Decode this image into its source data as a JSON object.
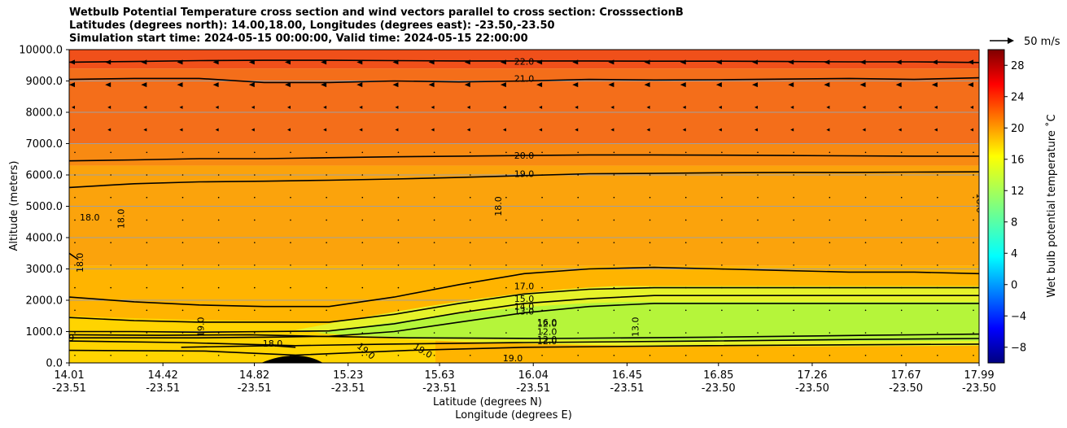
{
  "title_lines": [
    "Wetbulb Potential Temperature cross section and wind vectors parallel to cross section: CrosssectionB",
    "Latitudes (degrees north): 14.00,18.00, Longitudes (degrees east): -23.50,-23.50",
    "Simulation start time: 2024-05-15 00:00:00, Valid time: 2024-05-15 22:00:00"
  ],
  "chart_data": {
    "type": "heatmap",
    "subtype": "filled contour cross section with wind vectors",
    "ylabel": "Altitude (meters)",
    "xlabel_lines": [
      "Latitude (degrees N)",
      "Longitude (degrees E)"
    ],
    "ylim": [
      0,
      10000
    ],
    "xlim": [
      14.01,
      17.99
    ],
    "y_ticks": [
      0,
      1000,
      2000,
      3000,
      4000,
      5000,
      6000,
      7000,
      8000,
      9000,
      10000
    ],
    "y_tick_labels": [
      "0.0",
      "1000.0",
      "2000.0",
      "3000.0",
      "4000.0",
      "5000.0",
      "6000.0",
      "7000.0",
      "8000.0",
      "9000.0",
      "10000.0"
    ],
    "x_ticks": [
      14.01,
      14.42,
      14.82,
      15.23,
      15.63,
      16.04,
      16.45,
      16.85,
      17.26,
      17.67,
      17.99
    ],
    "x_tick_labels": [
      [
        "14.01",
        "-23.51"
      ],
      [
        "14.42",
        "-23.51"
      ],
      [
        "14.82",
        "-23.51"
      ],
      [
        "15.23",
        "-23.51"
      ],
      [
        "15.63",
        "-23.51"
      ],
      [
        "16.04",
        "-23.51"
      ],
      [
        "16.45",
        "-23.51"
      ],
      [
        "16.85",
        "-23.50"
      ],
      [
        "17.26",
        "-23.50"
      ],
      [
        "17.67",
        "-23.50"
      ],
      [
        "17.99",
        "-23.50"
      ]
    ],
    "grid": "horizontal",
    "colorbar": {
      "label": "Wet bulb potential temperature ˚C",
      "range": [
        -10,
        30
      ],
      "ticks": [
        -8,
        -4,
        0,
        4,
        8,
        12,
        16,
        20,
        24,
        28
      ],
      "tick_labels": [
        "−8",
        "−4",
        "0",
        "4",
        "8",
        "12",
        "16",
        "20",
        "24",
        "28"
      ],
      "colormap": "jet"
    },
    "quiver_key": {
      "label": "50 m/s",
      "value": 50
    },
    "contour_lines": [
      {
        "label": "22.0",
        "y": [
          9600,
          9620,
          9650,
          9660,
          9660,
          9650,
          9640,
          9640,
          9640,
          9630,
          9630,
          9620,
          9610,
          9610,
          9590
        ]
      },
      {
        "label": "21.0",
        "y": [
          9050,
          9080,
          9080,
          8950,
          8950,
          9000,
          8970,
          9000,
          9050,
          9030,
          9040,
          9060,
          9080,
          9050,
          9100
        ]
      },
      {
        "label": "20.0",
        "y": [
          6450,
          6480,
          6520,
          6520,
          6550,
          6580,
          6600,
          6620,
          6640,
          6640,
          6630,
          6620,
          6610,
          6600,
          6600
        ]
      },
      {
        "label": "19.0",
        "y": [
          5600,
          5720,
          5780,
          5800,
          5830,
          5870,
          5920,
          5980,
          6040,
          6050,
          6070,
          6080,
          6080,
          6090,
          6100
        ]
      },
      {
        "label": "17.0",
        "y": [
          2100,
          1950,
          1850,
          1800,
          1800,
          2100,
          2500,
          2850,
          3000,
          3050,
          3000,
          2950,
          2900,
          2900,
          2850
        ]
      },
      {
        "label": "15.0",
        "y": [
          1450,
          1350,
          1300,
          1300,
          1300,
          1550,
          1900,
          2200,
          2350,
          2400,
          2400,
          2400,
          2400,
          2400,
          2400
        ]
      },
      {
        "label": "14.0",
        "y": [
          1000,
          1000,
          980,
          1000,
          1020,
          1250,
          1600,
          1900,
          2050,
          2150,
          2150,
          2150,
          2150,
          2150,
          2150
        ]
      },
      {
        "label": "13.0",
        "y": [
          800,
          800,
          800,
          820,
          850,
          1000,
          1300,
          1600,
          1800,
          1900,
          1900,
          1900,
          1900,
          1900,
          1900
        ]
      }
    ],
    "contour_labels_other": [
      "18.0",
      "18.0",
      "18.0",
      "18.0",
      "18.0",
      "19.0",
      "19.0",
      "19.0",
      "19.0",
      "19.0",
      "16.0",
      "12.0",
      "12.0",
      "13.0",
      "12.0",
      "12.0",
      "18.0",
      "9"
    ],
    "fill_bands": [
      {
        "from": 9400,
        "to": 10000,
        "value": 22.5,
        "color": "#f0501a"
      },
      {
        "from": 7000,
        "to": 9400,
        "value": 21.0,
        "color": "#f46e1a"
      },
      {
        "from": 6300,
        "to": 7000,
        "value": 20.0,
        "color": "#f88a12"
      },
      {
        "from": 3100,
        "to": 6300,
        "value": 19.0,
        "color": "#fba30c"
      },
      {
        "from": 0,
        "to": 3100,
        "value": 18.0,
        "color": "#ffb400"
      }
    ],
    "core_region": {
      "value": 12.0,
      "color": "#b5f53a"
    }
  }
}
